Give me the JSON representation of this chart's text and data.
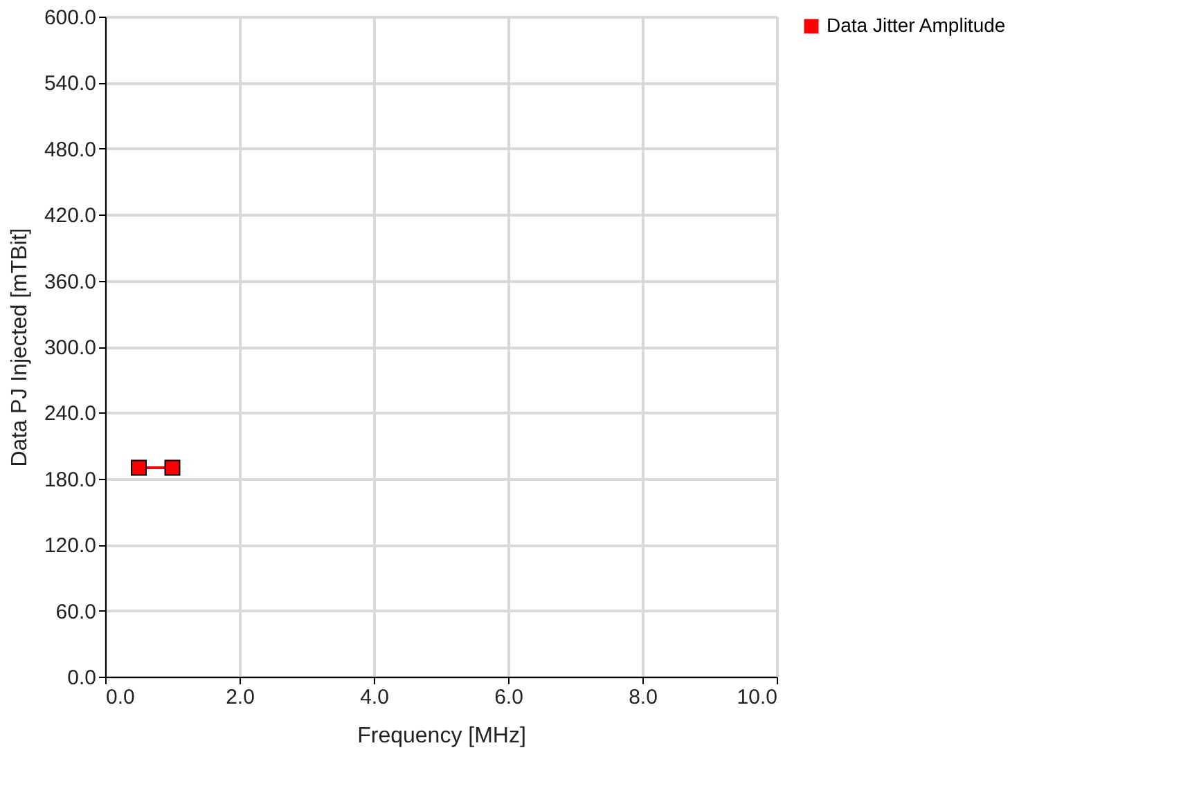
{
  "chart_data": {
    "type": "line",
    "xlabel": "Frequency [MHz]",
    "ylabel": "Data PJ Injected [mTBit]",
    "x": [
      0.5,
      1.0
    ],
    "series": [
      {
        "name": "Data Jitter Amplitude",
        "color": "#ff0000",
        "values": [
          190,
          190
        ]
      }
    ],
    "xlim": [
      0,
      10
    ],
    "ylim": [
      0,
      600
    ],
    "xticks": [
      {
        "value": 0,
        "label": "0.0"
      },
      {
        "value": 2,
        "label": "2.0"
      },
      {
        "value": 4,
        "label": "4.0"
      },
      {
        "value": 6,
        "label": "6.0"
      },
      {
        "value": 8,
        "label": "8.0"
      },
      {
        "value": 10,
        "label": "10.0"
      }
    ],
    "yticks": [
      {
        "value": 0,
        "label": "0.0"
      },
      {
        "value": 60,
        "label": "60.0"
      },
      {
        "value": 120,
        "label": "120.0"
      },
      {
        "value": 180,
        "label": "180.0"
      },
      {
        "value": 240,
        "label": "240.0"
      },
      {
        "value": 300,
        "label": "300.0"
      },
      {
        "value": 360,
        "label": "360.0"
      },
      {
        "value": 420,
        "label": "420.0"
      },
      {
        "value": 480,
        "label": "480.0"
      },
      {
        "value": 540,
        "label": "540.0"
      },
      {
        "value": 600,
        "label": "600.0"
      }
    ],
    "grid": true,
    "legend": "top right",
    "marker": "square",
    "line_style": "solid"
  }
}
